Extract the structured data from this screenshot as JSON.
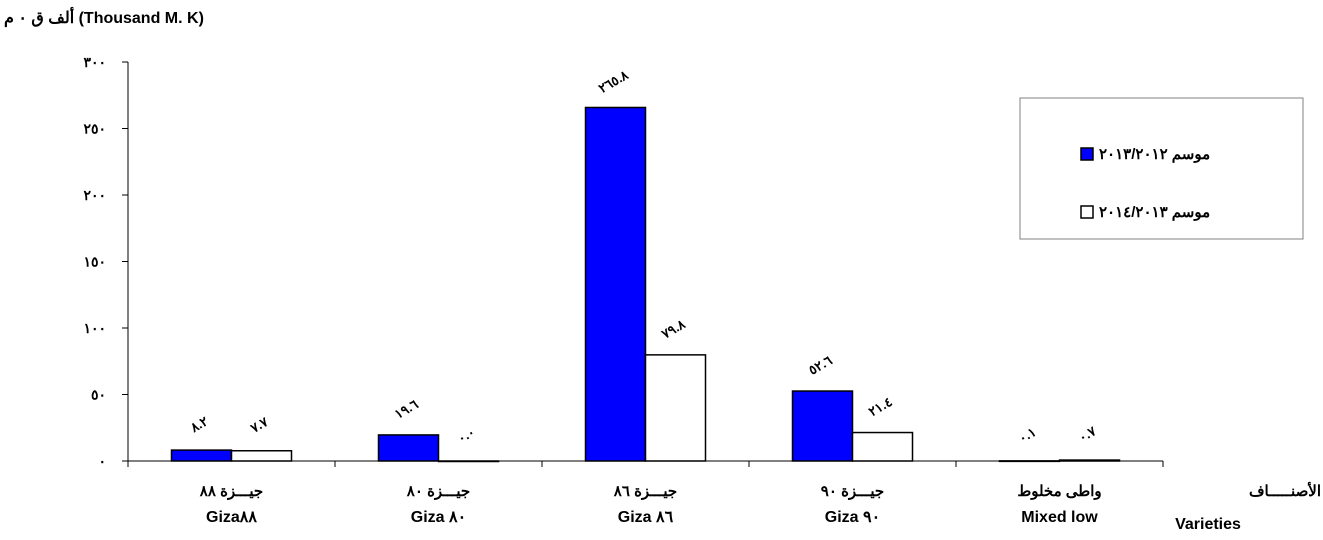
{
  "chart_data": {
    "type": "bar",
    "unit_label": "ألف ق ٠ م (Thousand M. K)",
    "x_axis_title": {
      "ar": "الأصنـــــاف",
      "en": "Varieties"
    },
    "categories": [
      {
        "ar": "جيـــزة ٨٨",
        "en": "Giza٨٨"
      },
      {
        "ar": "جيـــزة ٨٠",
        "en": "Giza ٨٠"
      },
      {
        "ar": "جيـــزة ٨٦",
        "en": "Giza ٨٦"
      },
      {
        "ar": "جيـــزة ٩٠",
        "en": "Giza ٩٠"
      },
      {
        "ar": "واطى مخلوط",
        "en": "Mixed low"
      }
    ],
    "series": [
      {
        "name": "موسم ٢٠١٣/٢٠١٢",
        "color": "#0000FF",
        "values": [
          8.2,
          19.6,
          265.8,
          52.6,
          0.1
        ],
        "labels": [
          "٨.٢",
          "١٩.٦",
          "٢٦٥.٨",
          "٥٢.٦",
          "٠.١"
        ]
      },
      {
        "name": "موسم ٢٠١٤/٢٠١٣",
        "color": "#FFFFFF",
        "values": [
          7.7,
          0.0,
          79.8,
          21.4,
          0.7
        ],
        "labels": [
          "٧.٧",
          "٠.٠",
          "٧٩.٨",
          "٢١.٤",
          "٠.٧"
        ]
      }
    ],
    "yticks": [
      0,
      50,
      100,
      150,
      200,
      250,
      300
    ],
    "ytick_labels": [
      "٠",
      "٥٠",
      "١٠٠",
      "١٥٠",
      "٢٠٠",
      "٢٥٠",
      "٣٠٠"
    ],
    "ylim": [
      0,
      300
    ],
    "grid": false,
    "legend_position": "top-right"
  }
}
